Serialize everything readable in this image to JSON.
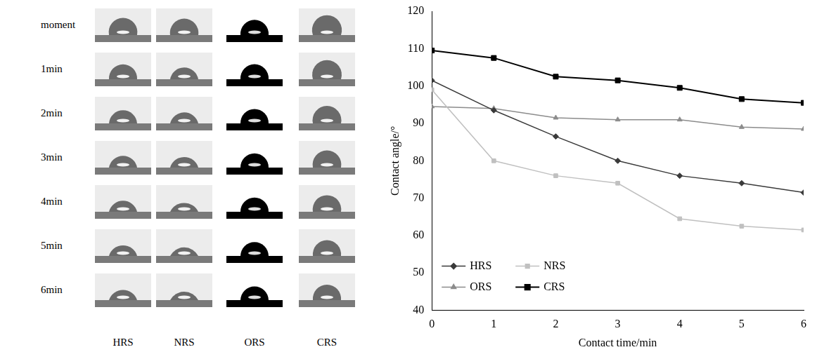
{
  "image_panel": {
    "row_labels": [
      "moment",
      "1min",
      "2min",
      "3min",
      "4min",
      "5min",
      "6min"
    ],
    "column_labels": [
      "HRS",
      "NRS",
      "ORS",
      "CRS"
    ]
  },
  "chart_data": {
    "type": "line",
    "x_label": "Contact time/min",
    "y_label": "Contact angle/°",
    "x": [
      0,
      1,
      2,
      3,
      4,
      5,
      6
    ],
    "series": [
      {
        "name": "HRS",
        "color": "#3a3a3a",
        "marker": "diamond",
        "values": [
          101.5,
          93.5,
          86.5,
          80,
          76,
          74,
          71.5
        ]
      },
      {
        "name": "NRS",
        "color": "#c0c0c0",
        "marker": "square",
        "values": [
          99,
          80,
          76,
          74,
          64.5,
          62.5,
          61.5
        ]
      },
      {
        "name": "ORS",
        "color": "#8c8c8c",
        "marker": "triangle",
        "values": [
          94.5,
          94,
          91.5,
          91,
          91,
          89,
          88.5
        ]
      },
      {
        "name": "CRS",
        "color": "#000000",
        "marker": "square",
        "values": [
          109.5,
          107.5,
          102.5,
          101.5,
          99.5,
          96.5,
          95.5
        ]
      }
    ],
    "xlim": [
      0,
      6
    ],
    "xticks": [
      0,
      1,
      2,
      3,
      4,
      5,
      6
    ],
    "ylim": [
      40,
      120
    ],
    "yticks": [
      40,
      50,
      60,
      70,
      80,
      90,
      100,
      110,
      120
    ],
    "grid": false,
    "legend": "lower left"
  }
}
